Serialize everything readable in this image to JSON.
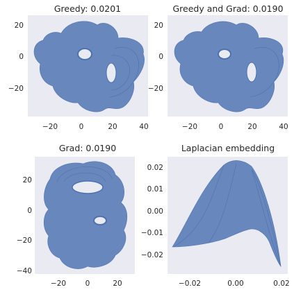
{
  "chart_data": [
    {
      "type": "mesh-plot",
      "title": "Greedy: 0.0201",
      "xlim": [
        -35,
        42
      ],
      "ylim": [
        -38,
        30
      ],
      "xticks": [
        -20,
        0,
        20,
        40
      ],
      "xtick_labels": [
        "−20",
        "0",
        "20",
        "40"
      ],
      "yticks": [
        -20,
        0,
        20
      ],
      "ytick_labels": [
        "−20",
        "0",
        "20"
      ],
      "grid": false,
      "color": "#4c72b0"
    },
    {
      "type": "mesh-plot",
      "title": "Greedy and Grad: 0.0190",
      "xlim": [
        -35,
        42
      ],
      "ylim": [
        -38,
        30
      ],
      "xticks": [
        -20,
        0,
        20,
        40
      ],
      "xtick_labels": [
        "−20",
        "0",
        "20",
        "40"
      ],
      "yticks": [
        -20,
        0,
        20
      ],
      "ytick_labels": [
        "−20",
        "0",
        "20"
      ],
      "grid": false,
      "color": "#4c72b0"
    },
    {
      "type": "mesh-plot",
      "title": "Grad: 0.0190",
      "xlim": [
        -34,
        34
      ],
      "ylim": [
        -42,
        33
      ],
      "xticks": [
        -20,
        0,
        20
      ],
      "xtick_labels": [
        "−20",
        "0",
        "20"
      ],
      "yticks": [
        -40,
        -20,
        0,
        20
      ],
      "ytick_labels": [
        "−40",
        "−20",
        "0",
        "20"
      ],
      "grid": false,
      "color": "#4c72b0"
    },
    {
      "type": "mesh-plot",
      "title": "Laplacian embedding",
      "xlim": [
        -0.031,
        0.021
      ],
      "ylim": [
        -0.029,
        0.027
      ],
      "xticks": [
        -0.02,
        0.0,
        0.02
      ],
      "xtick_labels": [
        "−0.02",
        "0.00",
        "0.02"
      ],
      "yticks": [
        -0.02,
        -0.01,
        0.0,
        0.01,
        0.02
      ],
      "ytick_labels": [
        "−0.02",
        "−0.01",
        "0.00",
        "0.01",
        "0.02"
      ],
      "grid": false,
      "color": "#4c72b0"
    }
  ]
}
